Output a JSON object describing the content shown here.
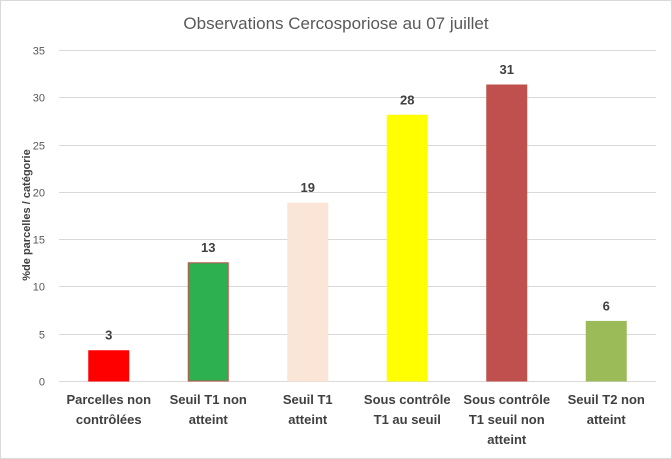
{
  "chart_data": {
    "type": "bar",
    "title": "Observations Cercosporiose au 07 juillet",
    "xlabel": "",
    "ylabel": "%de parcelles / catégorie",
    "ylim": [
      0,
      35
    ],
    "yticks": [
      0,
      5,
      10,
      15,
      20,
      25,
      30,
      35
    ],
    "grid": true,
    "legend": "none",
    "categories": [
      "Parcelles non contrôlées",
      "Seuil T1 non atteint",
      "Seuil T1 atteint",
      "Sous contrôle T1 au seuil",
      "Sous contrôle T1 seuil non atteint",
      "Seuil T2 non atteint"
    ],
    "category_lines": [
      [
        "Parcelles non",
        "contrôlées"
      ],
      [
        "Seuil T1 non",
        "atteint"
      ],
      [
        "Seuil T1",
        "atteint"
      ],
      [
        "Sous contrôle",
        "T1 au seuil"
      ],
      [
        "Sous contrôle",
        "T1  seuil non",
        "atteint"
      ],
      [
        "Seuil T2 non",
        "atteint"
      ]
    ],
    "values": [
      3.2,
      12.5,
      18.8,
      28.1,
      31.3,
      6.3
    ],
    "data_labels": [
      "3",
      "13",
      "19",
      "28",
      "31",
      "6"
    ],
    "colors": [
      "#ff0000",
      "#2db050",
      "#fbe5d6",
      "#ffff00",
      "#c0504d",
      "#9bbb59"
    ],
    "borders": [
      "#ff0000",
      "#c0504d",
      "#fbe5d6",
      "#ffff00",
      "#c0504d",
      "#9bbb59"
    ]
  }
}
